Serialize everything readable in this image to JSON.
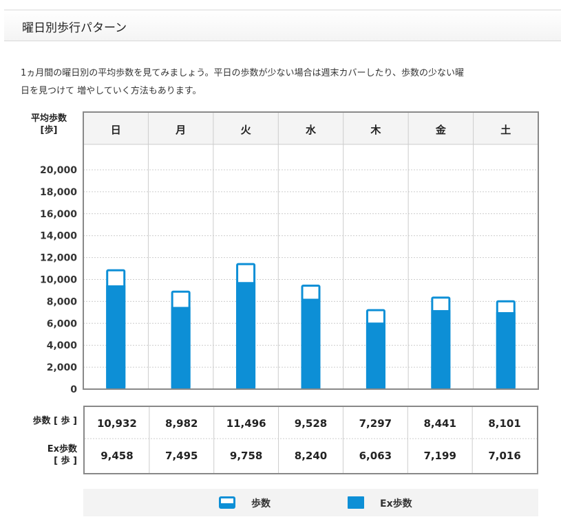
{
  "header": {
    "title": "曜日別歩行パターン"
  },
  "description": {
    "line1": "1ヵ月間の曜日別の平均歩数を見てみましょう。平日の歩数が少ない場合は週末カバーしたり、歩数の少ない曜",
    "line2": "日を見つけて 増やしていく方法もあります。"
  },
  "colors": {
    "bar": "#0d8fd6",
    "grid": "#cccccc",
    "frame": "#888888"
  },
  "chart_data": {
    "type": "bar",
    "ylabel_line1": "平均歩数",
    "ylabel_line2": "[歩]",
    "categories": [
      "日",
      "月",
      "火",
      "水",
      "木",
      "金",
      "土"
    ],
    "yticks": [
      "20,000",
      "18,000",
      "16,000",
      "14,000",
      "12,000",
      "10,000",
      "8,000",
      "6,000",
      "4,000",
      "2,000",
      "0"
    ],
    "ylim": [
      0,
      20000
    ],
    "series": [
      {
        "name": "歩数",
        "values": [
          10932,
          8982,
          11496,
          9528,
          7297,
          8441,
          8101
        ],
        "display": [
          "10,932",
          "8,982",
          "11,496",
          "9,528",
          "7,297",
          "8,441",
          "8,101"
        ]
      },
      {
        "name": "Ex歩数",
        "values": [
          9458,
          7495,
          9758,
          8240,
          6063,
          7199,
          7016
        ],
        "display": [
          "9,458",
          "7,495",
          "9,758",
          "8,240",
          "6,063",
          "7,199",
          "7,016"
        ]
      }
    ],
    "legend_position": "bottom",
    "grid": true
  },
  "table": {
    "row1_label": "歩数 [ 歩 ]",
    "row2_label_line1": "Ex歩数",
    "row2_label_line2": "[ 歩 ]"
  },
  "legend": {
    "steps": "歩数",
    "ex_steps": "Ex歩数"
  }
}
